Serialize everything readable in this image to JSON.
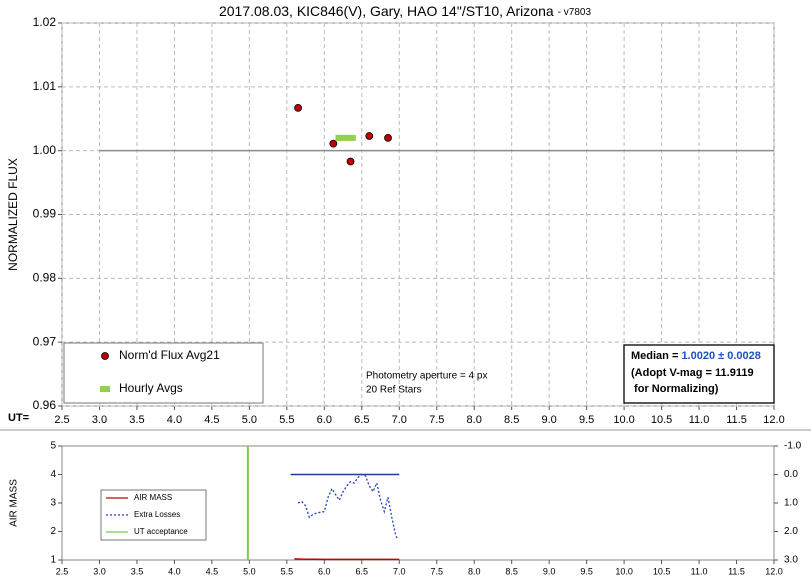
{
  "chart_data": [
    {
      "type": "scatter",
      "title": "2017.08.03, KIC846(V), Gary, HAO 14\"/ST10, Arizona",
      "subtitle": "- v7803",
      "ylabel": "NORMALIZED FLUX",
      "xlabel": "UT=",
      "xlim": [
        2.5,
        12
      ],
      "xticks": [
        2.5,
        {
          "value": 3,
          "label": "3.0"
        },
        3.5,
        {
          "value": 4,
          "label": "4.0"
        },
        4.5,
        {
          "value": 5,
          "label": "5.0"
        },
        5.5,
        {
          "value": 6,
          "label": "6.0"
        },
        6.5,
        {
          "value": 7,
          "label": "7.0"
        },
        7.5,
        {
          "value": 8,
          "label": "8.0"
        },
        8.5,
        {
          "value": 9,
          "label": "9.0"
        },
        9.5,
        {
          "value": 10,
          "label": "10.0"
        },
        10.5,
        {
          "value": 11,
          "label": "11.0"
        },
        11.5,
        {
          "value": 12,
          "label": "12.0"
        }
      ],
      "ylim": [
        0.96,
        1.02
      ],
      "yticks": [
        0.96,
        0.97,
        0.98,
        0.99,
        {
          "value": 1,
          "label": "1.00"
        },
        1.01,
        1.02
      ],
      "grid": true,
      "legend": "lower left",
      "series": [
        {
          "name": "Norm'd Flux Avg21",
          "type": "scatter",
          "color": "#c00000",
          "x": [
            5.65,
            6.12,
            6.35,
            6.6,
            6.85
          ],
          "values": [
            1.0067,
            1.0011,
            0.9983,
            1.0023,
            1.002
          ]
        },
        {
          "name": "Hourly Avgs",
          "type": "line",
          "color": "#92d050",
          "width": 6,
          "x": [
            6.15,
            6.42
          ],
          "values": [
            1.002,
            1.002
          ]
        }
      ],
      "reference_lines": [
        {
          "axis": "y",
          "y": 1,
          "x": [
            3,
            12
          ],
          "color": "#8c8c8c"
        }
      ],
      "annotations": [
        "Photometry aperture = 4 px",
        "20 Ref Stars"
      ],
      "median_box": {
        "label": "Median = ",
        "value": "1.0020 ± 0.0028",
        "lines": [
          "(Adopt V-mag = 11.9119",
          " for Normalizing)"
        ]
      }
    },
    {
      "type": "line",
      "ylabel": "AIR MASS",
      "xlim": [
        2.5,
        12
      ],
      "xticks": [
        2.5,
        {
          "value": 3,
          "label": "3.0"
        },
        3.5,
        {
          "value": 4,
          "label": "4.0"
        },
        4.5,
        {
          "value": 5,
          "label": "5.0"
        },
        5.5,
        {
          "value": 6,
          "label": "6.0"
        },
        6.5,
        {
          "value": 7,
          "label": "7.0"
        },
        7.5,
        {
          "value": 8,
          "label": "8.0"
        },
        8.5,
        {
          "value": 9,
          "label": "9.0"
        },
        9.5,
        {
          "value": 10,
          "label": "10.0"
        },
        10.5,
        {
          "value": 11,
          "label": "11.0"
        },
        11.5,
        {
          "value": 12,
          "label": "12.0"
        }
      ],
      "ylim": [
        1,
        5
      ],
      "yticks": [
        1,
        2,
        3,
        4,
        5
      ],
      "y2lim": [
        -1,
        3
      ],
      "y2_inverted": true,
      "y2ticks": [
        {
          "value": -1,
          "label": "-1.0"
        },
        {
          "value": 0,
          "label": "0.0"
        },
        {
          "value": 1,
          "label": "1.0"
        },
        {
          "value": 2,
          "label": "2.0"
        },
        {
          "value": 3,
          "label": "3.0"
        }
      ],
      "grid": false,
      "legend": "upper left",
      "series": [
        {
          "name": "AIR MASS",
          "type": "line",
          "color": "#c00000",
          "width": 1.5,
          "x": [
            5.6,
            5.7,
            6.0,
            6.5,
            7.0
          ],
          "values": [
            1.04,
            1.03,
            1.02,
            1.02,
            1.02
          ]
        },
        {
          "name": "Extra Losses",
          "type": "line",
          "axis": "y2",
          "color": "#1f3fbf",
          "width": 1.3,
          "dash": "2,2",
          "x": [
            5.65,
            5.7,
            5.75,
            5.8,
            5.85,
            5.9,
            6.0,
            6.05,
            6.1,
            6.15,
            6.2,
            6.25,
            6.3,
            6.35,
            6.4,
            6.45,
            6.5,
            6.55,
            6.6,
            6.65,
            6.7,
            6.75,
            6.8,
            6.85,
            6.9,
            6.95,
            6.98
          ],
          "values": [
            1.0,
            0.95,
            1.1,
            1.5,
            1.4,
            1.35,
            1.3,
            0.8,
            0.5,
            0.7,
            0.9,
            0.6,
            0.4,
            0.25,
            0.3,
            0.1,
            0.0,
            0.05,
            0.4,
            0.6,
            0.3,
            0.9,
            1.3,
            0.8,
            1.5,
            2.1,
            2.3
          ]
        },
        {
          "name": "UT acceptance",
          "type": "line",
          "color": "#7ec850",
          "width": 2,
          "x": [
            4.98,
            4.98
          ],
          "values": [
            1,
            5
          ]
        }
      ],
      "reference_lines": [
        {
          "axis": "y2",
          "y": 0,
          "x": [
            5.55,
            7.0
          ],
          "color": "#1f3f8f"
        }
      ]
    }
  ]
}
